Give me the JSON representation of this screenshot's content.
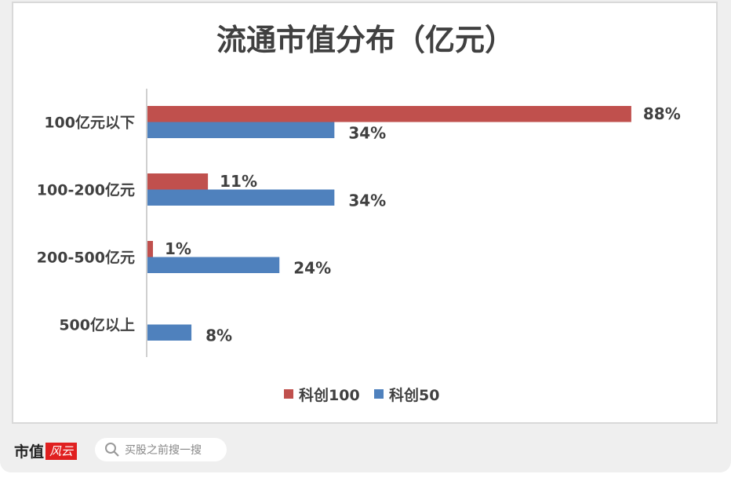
{
  "chart_data": {
    "type": "bar",
    "orientation": "horizontal",
    "title": "流通市值分布（亿元）",
    "categories": [
      "100亿元以下",
      "100-200亿元",
      "200-500亿元",
      "500亿以上"
    ],
    "series": [
      {
        "name": "科创100",
        "values": [
          88,
          11,
          1,
          null
        ],
        "labels": [
          "88%",
          "11%",
          "1%",
          ""
        ],
        "color": "#c0504d"
      },
      {
        "name": "科创50",
        "values": [
          34,
          34,
          24,
          8
        ],
        "labels": [
          "34%",
          "34%",
          "24%",
          "8%"
        ],
        "color": "#4f81bd"
      }
    ],
    "unit": "%",
    "xlim": [
      0,
      100
    ],
    "grid": false,
    "legend_placement": "bottom"
  },
  "footer": {
    "logo": "市值风云",
    "logo_left": "市值",
    "logo_right": "风云",
    "search_placeholder": "买股之前搜一搜",
    "search_icon": "search-icon"
  }
}
